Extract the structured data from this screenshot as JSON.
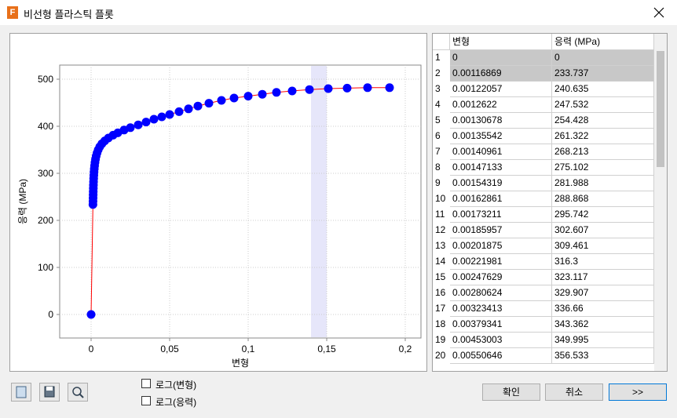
{
  "window": {
    "title": "비선형 플라스틱 플롯"
  },
  "chart_data": {
    "type": "line",
    "x_label": "변형",
    "y_label": "응력 (MPa)",
    "xlim": [
      -0.02,
      0.21
    ],
    "ylim": [
      -50,
      530
    ],
    "xticks": [
      0,
      {
        "value": 0.05,
        "label": "0,05"
      },
      {
        "value": 0.1,
        "label": "0,1"
      },
      {
        "value": 0.15,
        "label": "0,15"
      },
      {
        "value": 0.2,
        "label": "0,2"
      }
    ],
    "yticks": [
      0,
      100,
      200,
      300,
      400,
      500
    ],
    "grid": true,
    "highlight": [
      0.14,
      0.15
    ],
    "series": [
      {
        "color": "#ff0000",
        "marker_color": "#0000ff",
        "x": [
          0,
          0.00116869,
          0.00122057,
          0.0012622,
          0.00130678,
          0.00135542,
          0.00140961,
          0.00147133,
          0.00154319,
          0.00162861,
          0.00173211,
          0.00185957,
          0.00201875,
          0.00221981,
          0.00247629,
          0.00280624,
          0.00323413,
          0.00379341,
          0.00453003,
          0.00550646,
          0.0069,
          0.0087,
          0.011,
          0.014,
          0.017,
          0.021,
          0.025,
          0.03,
          0.035,
          0.04,
          0.045,
          0.05,
          0.056,
          0.062,
          0.068,
          0.075,
          0.083,
          0.091,
          0.1,
          0.109,
          0.118,
          0.128,
          0.139,
          0.151,
          0.163,
          0.176,
          0.19
        ],
        "values": [
          0,
          233.737,
          240.635,
          247.532,
          254.428,
          261.322,
          268.213,
          275.102,
          281.988,
          288.868,
          295.742,
          302.607,
          309.461,
          316.3,
          323.117,
          329.907,
          336.66,
          343.362,
          349.995,
          356.533,
          363,
          369,
          375,
          381,
          386,
          392,
          397,
          403,
          409,
          415,
          420,
          425,
          431,
          437,
          443,
          449,
          455,
          460,
          464,
          468,
          472,
          475,
          478,
          480,
          481,
          482,
          482
        ]
      }
    ]
  },
  "table": {
    "columns": [
      "변형",
      "응력 (MPa)"
    ],
    "rows": [
      [
        "1",
        "0",
        "0"
      ],
      [
        "2",
        "0.00116869",
        "233.737"
      ],
      [
        "3",
        "0.00122057",
        "240.635"
      ],
      [
        "4",
        "0.0012622",
        "247.532"
      ],
      [
        "5",
        "0.00130678",
        "254.428"
      ],
      [
        "6",
        "0.00135542",
        "261.322"
      ],
      [
        "7",
        "0.00140961",
        "268.213"
      ],
      [
        "8",
        "0.00147133",
        "275.102"
      ],
      [
        "9",
        "0.00154319",
        "281.988"
      ],
      [
        "10",
        "0.00162861",
        "288.868"
      ],
      [
        "11",
        "0.00173211",
        "295.742"
      ],
      [
        "12",
        "0.00185957",
        "302.607"
      ],
      [
        "13",
        "0.00201875",
        "309.461"
      ],
      [
        "14",
        "0.00221981",
        "316.3"
      ],
      [
        "15",
        "0.00247629",
        "323.117"
      ],
      [
        "16",
        "0.00280624",
        "329.907"
      ],
      [
        "17",
        "0.00323413",
        "336.66"
      ],
      [
        "18",
        "0.00379341",
        "343.362"
      ],
      [
        "19",
        "0.00453003",
        "349.995"
      ],
      [
        "20",
        "0.00550646",
        "356.533"
      ]
    ]
  },
  "checkboxes": [
    "로그(변형)",
    "로그(응력)"
  ],
  "buttons": [
    "확인",
    "취소",
    ">>"
  ]
}
